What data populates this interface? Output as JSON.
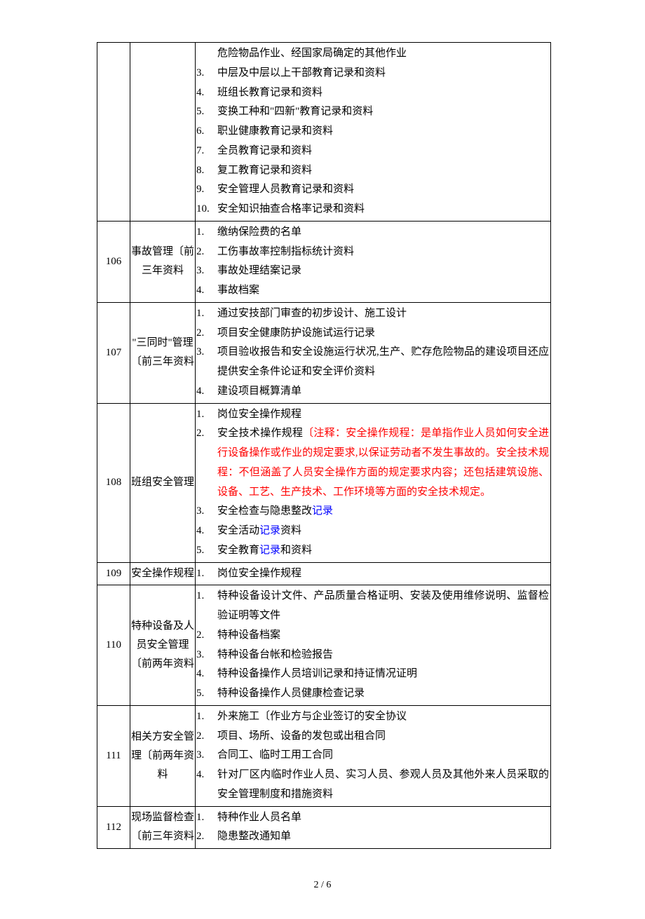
{
  "page_marker": ".",
  "footer": "2 / 6",
  "colors": {
    "text": "#000000",
    "border": "#000000",
    "background": "#ffffff",
    "highlight_red": "#ff0000",
    "highlight_blue": "#0000ff"
  },
  "rows": [
    {
      "id": "",
      "name": "",
      "items": [
        {
          "n": "",
          "segs": [
            {
              "t": "危险物品作业、经国家局确定的其他作业"
            }
          ]
        },
        {
          "n": "3.",
          "segs": [
            {
              "t": "中层及中层以上干部教育记录和资料"
            }
          ]
        },
        {
          "n": "4.",
          "segs": [
            {
              "t": "班组长教育记录和资料"
            }
          ]
        },
        {
          "n": "5.",
          "segs": [
            {
              "t": "变换工种和\"四新\"教育记录和资料"
            }
          ]
        },
        {
          "n": "6.",
          "segs": [
            {
              "t": "职业健康教育记录和资料"
            }
          ]
        },
        {
          "n": "7.",
          "segs": [
            {
              "t": "全员教育记录和资料"
            }
          ]
        },
        {
          "n": "8.",
          "segs": [
            {
              "t": "复工教育记录和资料"
            }
          ]
        },
        {
          "n": "9.",
          "segs": [
            {
              "t": "安全管理人员教育记录和资料"
            }
          ]
        },
        {
          "n": "10.",
          "segs": [
            {
              "t": "安全知识抽查合格率记录和资料"
            }
          ]
        }
      ]
    },
    {
      "id": "106",
      "name": "事故管理〔前三年资料",
      "items": [
        {
          "n": "1.",
          "segs": [
            {
              "t": "缴纳保险费的名单"
            }
          ]
        },
        {
          "n": "2.",
          "segs": [
            {
              "t": "工伤事故率控制指标统计资料"
            }
          ]
        },
        {
          "n": "3.",
          "segs": [
            {
              "t": "事故处理结案记录"
            }
          ]
        },
        {
          "n": "4.",
          "segs": [
            {
              "t": "事故档案"
            }
          ]
        }
      ]
    },
    {
      "id": "107",
      "name": "\"三同时\"管理〔前三年资料",
      "items": [
        {
          "n": "1.",
          "segs": [
            {
              "t": "通过安技部门审查的初步设计、施工设计"
            }
          ]
        },
        {
          "n": "2.",
          "segs": [
            {
              "t": "项目安全健康防护设施试运行记录"
            }
          ]
        },
        {
          "n": "3.",
          "segs": [
            {
              "t": "项目验收报告和安全设施运行状况,生产、贮存危险物品的建设项目还应提供安全条件论证和安全评价资料"
            }
          ]
        },
        {
          "n": "4.",
          "segs": [
            {
              "t": "建设项目概算清单"
            }
          ]
        }
      ]
    },
    {
      "id": "108",
      "name": "班组安全管理",
      "items": [
        {
          "n": "1.",
          "segs": [
            {
              "t": "岗位安全操作规程"
            }
          ]
        },
        {
          "n": "2.",
          "segs": [
            {
              "t": "安全技术操作规程"
            },
            {
              "t": "〔注释：安全操作规程：是单指作业人员如何安全进行设备操作或作业的规定要求,以保证劳动者不发生事故的。安全技术规程：不但涵盖了人员安全操作方面的规定要求内容；还包括建筑设施、设备、工艺、生产技术、工作环境等方面的安全技术规定。",
              "c": "red"
            }
          ]
        },
        {
          "n": "3.",
          "segs": [
            {
              "t": "安全检查与隐患整改"
            },
            {
              "t": "记录",
              "c": "blue"
            }
          ]
        },
        {
          "n": "4.",
          "segs": [
            {
              "t": "安全活动"
            },
            {
              "t": "记录",
              "c": "blue"
            },
            {
              "t": "资料"
            }
          ]
        },
        {
          "n": "5.",
          "segs": [
            {
              "t": "安全教育"
            },
            {
              "t": "记录",
              "c": "blue"
            },
            {
              "t": "和资料"
            }
          ]
        }
      ]
    },
    {
      "id": "109",
      "name": "安全操作规程",
      "items": [
        {
          "n": "1.",
          "segs": [
            {
              "t": "岗位安全操作规程"
            }
          ]
        },
        {
          "n": "",
          "segs": [
            {
              "t": ""
            }
          ]
        }
      ]
    },
    {
      "id": "110",
      "name": "特种设备及人员安全管理〔前两年资料",
      "items": [
        {
          "n": "1.",
          "segs": [
            {
              "t": "特种设备设计文件、产品质量合格证明、安装及使用维修说明、监督检验证明等文件"
            }
          ]
        },
        {
          "n": "2.",
          "segs": [
            {
              "t": "特种设备档案"
            }
          ]
        },
        {
          "n": "3.",
          "segs": [
            {
              "t": "特种设备台帐和检验报告"
            }
          ]
        },
        {
          "n": "4.",
          "segs": [
            {
              "t": "特种设备操作人员培训记录和持证情况证明"
            }
          ]
        },
        {
          "n": "5.",
          "segs": [
            {
              "t": "特种设备操作人员健康检查记录"
            }
          ]
        }
      ]
    },
    {
      "id": "111",
      "name": "相关方安全管理〔前两年资料",
      "items": [
        {
          "n": "1.",
          "segs": [
            {
              "t": "外来施工〔作业方与企业签订的安全协议"
            }
          ]
        },
        {
          "n": "2.",
          "segs": [
            {
              "t": "项目、场所、设备的发包或出租合同"
            }
          ]
        },
        {
          "n": "3.",
          "segs": [
            {
              "t": "合同工、临时工用工合同"
            }
          ]
        },
        {
          "n": "4.",
          "segs": [
            {
              "t": "针对厂区内临时作业人员、实习人员、参观人员及其他外来人员采取的安全管理制度和措施资料"
            }
          ]
        }
      ]
    },
    {
      "id": "112",
      "name": "现场监督检查〔前三年资料",
      "items": [
        {
          "n": "1.",
          "segs": [
            {
              "t": "特种作业人员名单"
            }
          ]
        },
        {
          "n": "2.",
          "segs": [
            {
              "t": "隐患整改通知单"
            }
          ]
        },
        {
          "n": "",
          "segs": [
            {
              "t": ""
            }
          ]
        }
      ]
    }
  ]
}
